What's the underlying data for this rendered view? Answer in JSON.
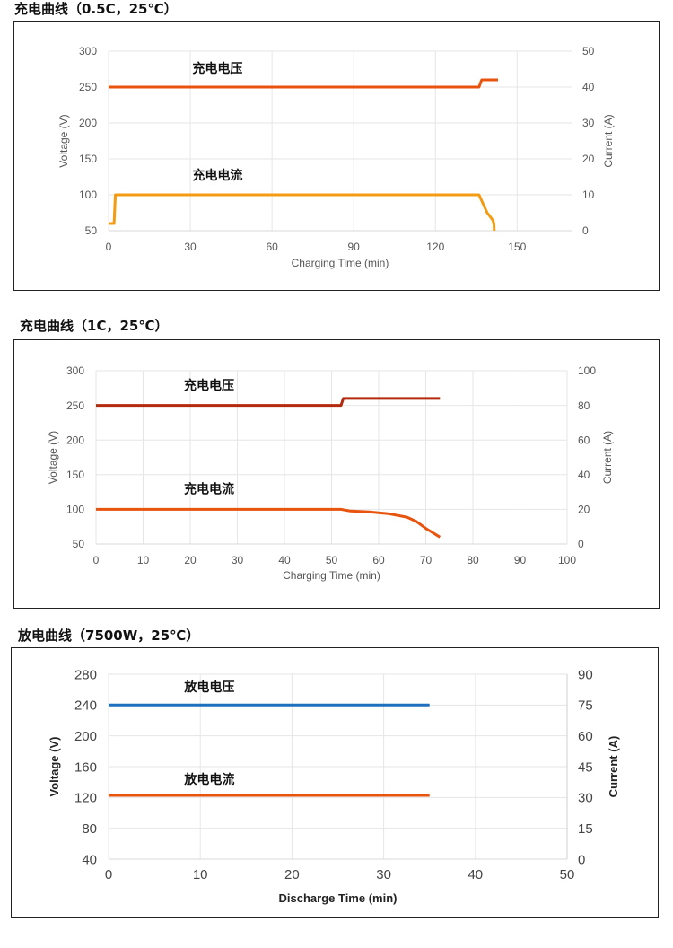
{
  "chart_data": [
    {
      "type": "line",
      "title": "充电曲线（0.5C，25℃）",
      "xlabel": "Charging Time (min)",
      "ylabel": "Voltage (V)",
      "y2label": "Current (A)",
      "xlim": [
        0,
        170
      ],
      "ylim": [
        50,
        300
      ],
      "y2lim": [
        0,
        50
      ],
      "xticks": [
        0,
        30,
        60,
        90,
        120,
        150
      ],
      "yticks": [
        50,
        100,
        150,
        200,
        250,
        300
      ],
      "y2ticks": [
        0,
        10,
        20,
        30,
        40,
        50
      ],
      "grid": true,
      "legend": "inline annotations",
      "annotations": [
        {
          "text": "充电电压",
          "x": 40,
          "y": 270
        },
        {
          "text": "充电电流",
          "x": 40,
          "y": 121
        }
      ],
      "series": [
        {
          "name": "充电电压",
          "axis": "left",
          "color": "#e8530e",
          "x": [
            0,
            136,
            137,
            143
          ],
          "y": [
            250,
            250,
            260,
            260
          ]
        },
        {
          "name": "充电电流",
          "axis": "right",
          "color": "#f39c12",
          "x": [
            0,
            2,
            2.5,
            136,
            139,
            141,
            141.5,
            141.6
          ],
          "y": [
            2,
            2,
            10,
            10,
            5,
            3,
            2,
            0
          ]
        }
      ]
    },
    {
      "type": "line",
      "title": "充电曲线（1C，25℃）",
      "xlabel": "Charging Time (min)",
      "ylabel": "Voltage (V)",
      "y2label": "Current (A)",
      "xlim": [
        0,
        100
      ],
      "ylim": [
        50,
        300
      ],
      "y2lim": [
        0,
        100
      ],
      "xticks": [
        0,
        10,
        20,
        30,
        40,
        50,
        60,
        70,
        80,
        90,
        100
      ],
      "yticks": [
        50,
        100,
        150,
        200,
        250,
        300
      ],
      "y2ticks": [
        0,
        20,
        40,
        60,
        80,
        100
      ],
      "grid": true,
      "legend": "inline annotations",
      "annotations": [
        {
          "text": "充电电压",
          "x": 24,
          "y": 273
        },
        {
          "text": "充电电流",
          "x": 24,
          "y": 123
        }
      ],
      "series": [
        {
          "name": "充电电压",
          "axis": "left",
          "color": "#b32a0c",
          "x": [
            0,
            52,
            52.5,
            73
          ],
          "y": [
            250,
            250,
            260,
            260
          ]
        },
        {
          "name": "充电电流",
          "axis": "right",
          "color": "#e8530e",
          "x": [
            0,
            52,
            54,
            58,
            62,
            66,
            68,
            70,
            73
          ],
          "y": [
            20,
            20,
            19,
            18.5,
            17.5,
            15.5,
            13,
            9,
            4
          ]
        }
      ]
    },
    {
      "type": "line",
      "title": "放电曲线（7500W，25℃）",
      "xlabel": "Discharge Time  (min)",
      "ylabel": "Voltage  (V)",
      "y2label": "Current  (A)",
      "xlim": [
        0,
        50
      ],
      "ylim": [
        40,
        280
      ],
      "y2lim": [
        0,
        90
      ],
      "xticks": [
        0,
        10,
        20,
        30,
        40,
        50
      ],
      "yticks": [
        40,
        80,
        120,
        160,
        200,
        240,
        280
      ],
      "y2ticks": [
        0,
        15,
        30,
        45,
        60,
        75,
        90
      ],
      "grid": true,
      "legend": "inline annotations",
      "annotations": [
        {
          "text": "放电电压",
          "x": 11,
          "y": 258
        },
        {
          "text": "放电电流",
          "x": 11,
          "y": 138
        }
      ],
      "series": [
        {
          "name": "放电电压",
          "axis": "left",
          "color": "#1f6fbf",
          "x": [
            0,
            35
          ],
          "y": [
            240,
            240
          ]
        },
        {
          "name": "放电电流",
          "axis": "right",
          "color": "#e8530e",
          "x": [
            0,
            35
          ],
          "y": [
            31,
            31
          ]
        }
      ]
    }
  ]
}
